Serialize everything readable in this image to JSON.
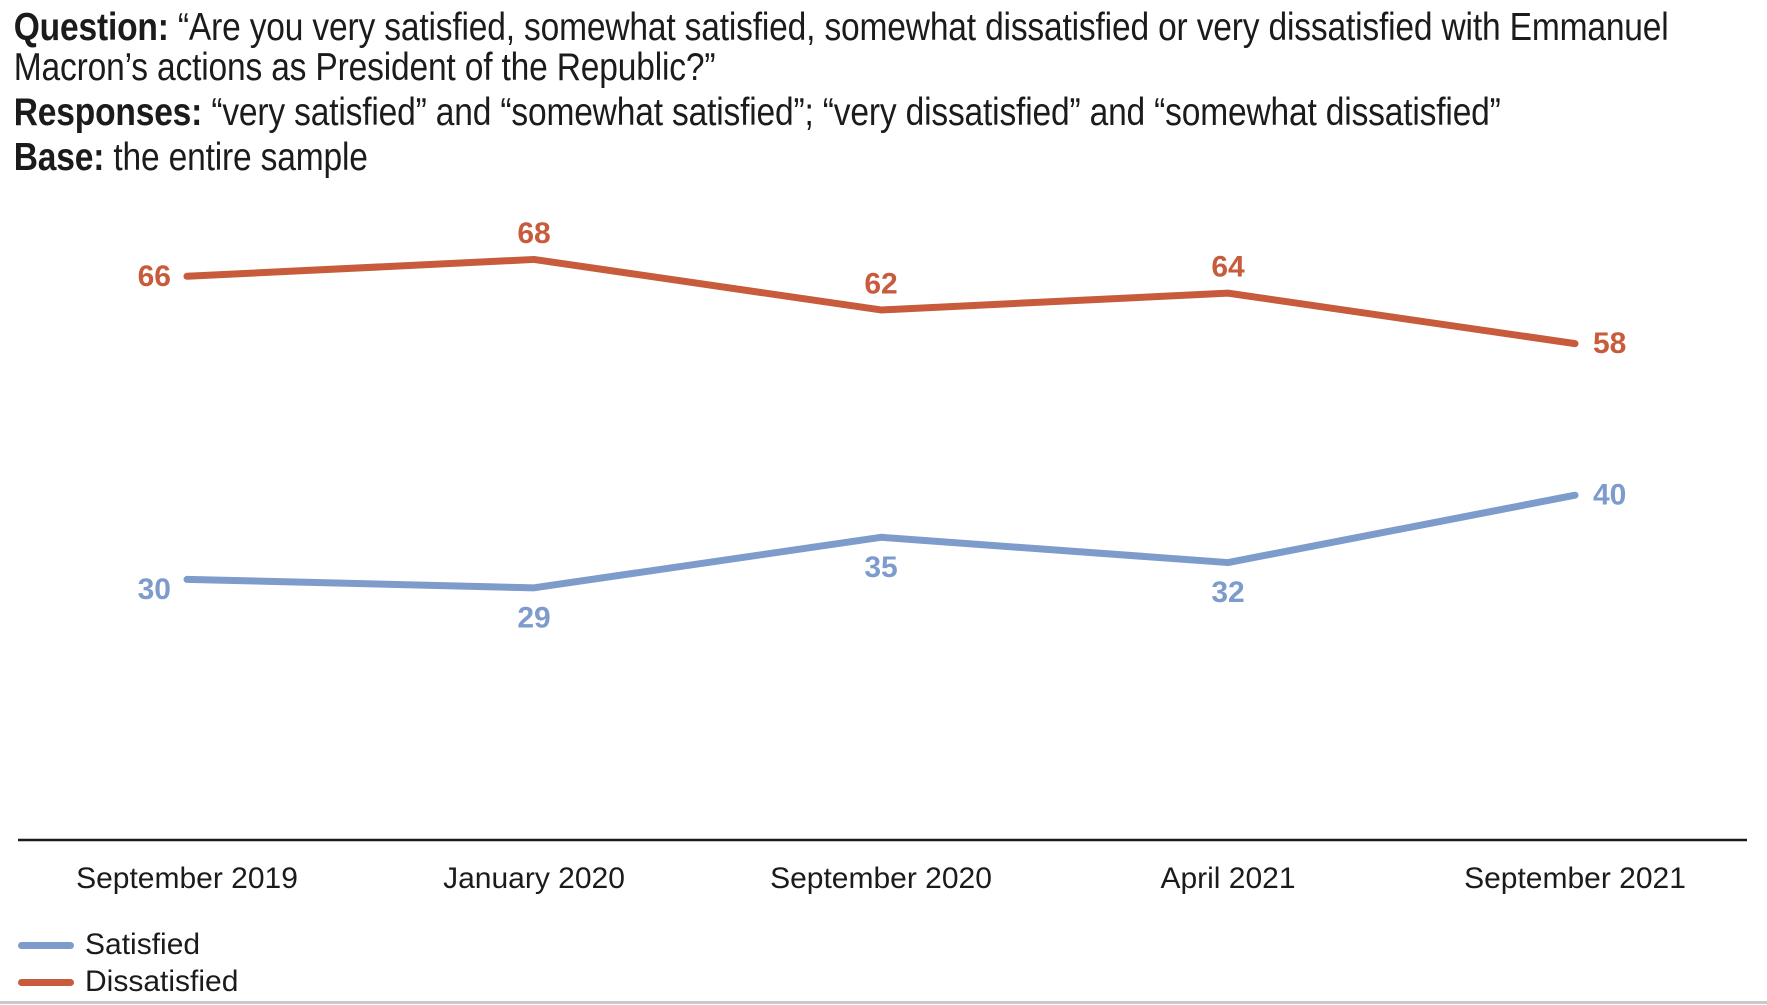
{
  "header": {
    "question_label": "Question:",
    "question_text": "“Are you very satisfied, somewhat satisfied, somewhat dissatisfied or very dissatisfied with Emmanuel Macron’s actions as President of the Republic?”",
    "responses_label": "Responses:",
    "responses_text": "“very satisfied” and “somewhat satisfied”; “very dissatisfied” and “somewhat dissatisfied”",
    "base_label": "Base:",
    "base_text": "the entire sample"
  },
  "chart_data": {
    "type": "line",
    "title": "",
    "xlabel": "",
    "ylabel": "",
    "categories": [
      "September 2019",
      "January 2020",
      "September 2020",
      "April 2021",
      "September 2021"
    ],
    "series": [
      {
        "name": "Satisfied",
        "color": "#7D9BCB",
        "values": [
          30,
          29,
          35,
          32,
          40
        ],
        "label_placements": [
          "left-low",
          "below",
          "below",
          "below",
          "right"
        ]
      },
      {
        "name": "Dissatisfied",
        "color": "#C75B3C",
        "values": [
          66,
          68,
          62,
          64,
          58
        ],
        "label_placements": [
          "left",
          "above",
          "above",
          "above",
          "right"
        ]
      }
    ],
    "ylim": [
      0,
      78
    ],
    "grid": false,
    "axis_color": "#1a1a1a",
    "data_labels": true,
    "legend_position": "bottom-left"
  }
}
